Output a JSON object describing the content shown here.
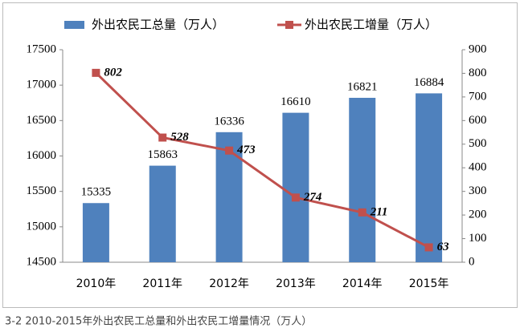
{
  "chart_data": {
    "type": "bar",
    "categories": [
      "2010年",
      "2011年",
      "2012年",
      "2013年",
      "2014年",
      "2015年"
    ],
    "series": [
      {
        "name": "外出农民工总量（万人）",
        "type": "bar",
        "color": "#4f81bd",
        "values": [
          15335,
          15863,
          16336,
          16610,
          16821,
          16884
        ]
      },
      {
        "name": "外出农民工增量（万人）",
        "type": "line",
        "axis": "y2",
        "color": "#c0504d",
        "values": [
          802,
          528,
          473,
          274,
          211,
          63
        ]
      }
    ],
    "ylim": [
      14500,
      17500
    ],
    "yticks": [
      14500,
      15000,
      15500,
      16000,
      16500,
      17000,
      17500
    ],
    "y2lim": [
      0,
      900
    ],
    "y2ticks": [
      0,
      100,
      200,
      300,
      400,
      500,
      600,
      700,
      800,
      900
    ],
    "legend": "top",
    "grid": false,
    "caption": "3-2 2010-2015年外出农民工总量和外出农民工增量情况（万人）"
  }
}
